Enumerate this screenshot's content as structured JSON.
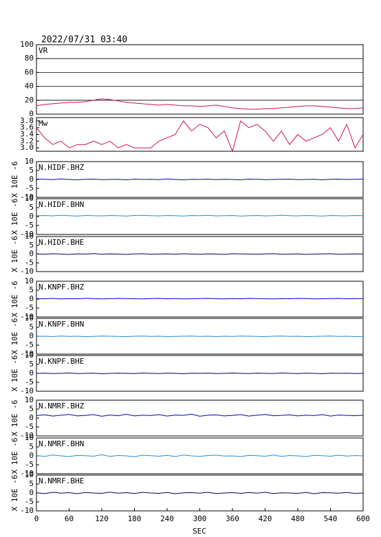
{
  "chart_data": {
    "type": "line",
    "title": "2022/07/31 03:40",
    "xlabel": "SEC",
    "xlim": [
      0,
      600
    ],
    "xticks": [
      0,
      60,
      120,
      180,
      240,
      300,
      360,
      420,
      480,
      540,
      600
    ],
    "x": [
      0,
      15,
      30,
      45,
      60,
      75,
      90,
      105,
      120,
      135,
      150,
      165,
      180,
      195,
      210,
      225,
      240,
      255,
      270,
      285,
      300,
      315,
      330,
      345,
      360,
      375,
      390,
      405,
      420,
      435,
      450,
      465,
      480,
      495,
      510,
      525,
      540,
      555,
      570,
      585,
      600
    ],
    "panels": [
      {
        "label": "VR",
        "ylim": [
          0,
          100
        ],
        "yticks": [
          0,
          20,
          40,
          60,
          80,
          100
        ],
        "grid": true,
        "series": [
          {
            "color": "#d0104c",
            "values": [
              12,
              14,
              15,
              16,
              17,
              17,
              18,
              20,
              22,
              21,
              19,
              17,
              16,
              15,
              14,
              13,
              14,
              13,
              12,
              12,
              11,
              12,
              13,
              11,
              9,
              8,
              7,
              7,
              8,
              8,
              9,
              10,
              11,
              12,
              12,
              11,
              10,
              9,
              8,
              8,
              9
            ]
          }
        ]
      },
      {
        "label": "Mw",
        "ylim": [
          2.9,
          3.9
        ],
        "yticks": [
          {
            "value": 3.0,
            "label": "3.0"
          },
          {
            "value": 3.2,
            "label": "3.2"
          },
          {
            "value": 3.4,
            "label": "3.4"
          },
          {
            "value": 3.6,
            "label": "3.6"
          },
          {
            "value": 3.8,
            "label": "3.8"
          }
        ],
        "grid": false,
        "series": [
          {
            "color": "#d0104c",
            "values": [
              3.6,
              3.3,
              3.1,
              3.2,
              3.0,
              3.1,
              3.1,
              3.2,
              3.1,
              3.2,
              3.0,
              3.1,
              3.0,
              3.0,
              3.0,
              3.2,
              3.3,
              3.4,
              3.8,
              3.5,
              3.7,
              3.6,
              3.3,
              3.5,
              2.9,
              3.8,
              3.6,
              3.7,
              3.5,
              3.2,
              3.5,
              3.1,
              3.4,
              3.2,
              3.3,
              3.4,
              3.6,
              3.2,
              3.7,
              3.0,
              3.4
            ]
          }
        ]
      },
      {
        "label": "N.HIDF.BHZ",
        "ylabel": "X 10E -6",
        "ylim": [
          -10,
          10
        ],
        "yticks": [
          -10,
          -5,
          0,
          5,
          10
        ],
        "grid": false,
        "series": [
          {
            "color": "#0000c0",
            "values": [
              0.2,
              0.1,
              -0.1,
              0.3,
              0.0,
              -0.2,
              0.1,
              0.2,
              -0.1,
              0.0,
              0.1,
              -0.2,
              0.2,
              0.0,
              0.1,
              -0.1,
              0.3,
              0.0,
              -0.2,
              0.1,
              0.0,
              0.2,
              -0.1,
              0.1,
              0.0,
              -0.2,
              0.2,
              0.1,
              -0.1,
              0.0,
              0.1,
              0.2,
              -0.1,
              0.0,
              0.1,
              -0.2,
              0.1,
              0.2,
              0.0,
              0.1,
              0.2
            ]
          }
        ]
      },
      {
        "label": "N.HIDF.BHN",
        "ylabel": "X 10E -6",
        "ylim": [
          -10,
          10
        ],
        "yticks": [
          -10,
          -5,
          0,
          5,
          10
        ],
        "grid": false,
        "series": [
          {
            "color": "#1e8ce0",
            "values": [
              0.5,
              0.6,
              0.4,
              0.7,
              0.5,
              0.3,
              0.6,
              0.5,
              0.4,
              0.6,
              0.5,
              0.3,
              0.6,
              0.7,
              0.5,
              0.4,
              0.6,
              0.5,
              0.3,
              0.6,
              0.5,
              0.7,
              0.4,
              0.5,
              0.6,
              0.3,
              0.5,
              0.6,
              0.4,
              0.5,
              0.7,
              0.5,
              0.4,
              0.6,
              0.5,
              0.3,
              0.6,
              0.5,
              0.4,
              0.6,
              0.5
            ]
          }
        ]
      },
      {
        "label": "N.HIDF.BHE",
        "ylabel": "X 10E -6",
        "ylim": [
          -10,
          10
        ],
        "yticks": [
          -10,
          -5,
          0,
          5,
          10
        ],
        "grid": false,
        "series": [
          {
            "color": "#000060",
            "values": [
              0.1,
              -0.1,
              0.2,
              0.0,
              -0.2,
              0.1,
              0.0,
              0.3,
              -0.1,
              0.1,
              0.0,
              -0.2,
              0.1,
              0.2,
              -0.1,
              0.0,
              0.1,
              -0.1,
              0.2,
              0.0,
              -0.1,
              0.1,
              0.0,
              -0.2,
              0.2,
              0.1,
              0.0,
              -0.1,
              0.1,
              0.2,
              -0.1,
              0.0,
              0.1,
              -0.2,
              0.0,
              0.1,
              0.2,
              -0.1,
              0.0,
              0.1,
              0.0
            ]
          }
        ]
      },
      {
        "label": "N.KNPF.BHZ",
        "ylabel": "X 10E -6",
        "ylim": [
          -10,
          10
        ],
        "yticks": [
          -10,
          -5,
          0,
          5,
          10
        ],
        "grid": false,
        "series": [
          {
            "color": "#0000c0",
            "values": [
              0.3,
              0.2,
              0.4,
              0.1,
              0.3,
              0.2,
              0.4,
              0.3,
              0.1,
              0.2,
              0.4,
              0.3,
              0.2,
              0.1,
              0.3,
              0.4,
              0.2,
              0.3,
              0.1,
              0.2,
              0.3,
              0.4,
              0.2,
              0.1,
              0.3,
              0.2,
              0.4,
              0.3,
              0.2,
              0.1,
              0.3,
              0.2,
              0.4,
              0.3,
              0.1,
              0.2,
              0.3,
              0.4,
              0.2,
              0.3,
              0.2
            ]
          }
        ]
      },
      {
        "label": "N.KNPF.BHN",
        "ylabel": "X 10E -6",
        "ylim": [
          -10,
          10
        ],
        "yticks": [
          -10,
          -5,
          0,
          5,
          10
        ],
        "grid": false,
        "series": [
          {
            "color": "#1e8ce0",
            "values": [
              -0.1,
              0.0,
              -0.2,
              0.1,
              -0.1,
              0.0,
              -0.2,
              -0.1,
              0.1,
              0.0,
              -0.1,
              -0.2,
              0.0,
              0.1,
              -0.1,
              0.0,
              -0.2,
              -0.1,
              0.0,
              0.1,
              -0.1,
              0.0,
              -0.2,
              0.0,
              -0.1,
              0.1,
              0.0,
              -0.1,
              -0.2,
              0.0,
              0.1,
              -0.1,
              0.0,
              -0.2,
              -0.1,
              0.0,
              0.1,
              -0.1,
              0.0,
              -0.2,
              -0.1
            ]
          }
        ]
      },
      {
        "label": "N.KNPF.BHE",
        "ylabel": "X 10E -6",
        "ylim": [
          -10,
          10
        ],
        "yticks": [
          -10,
          -5,
          0,
          5,
          10
        ],
        "grid": false,
        "series": [
          {
            "color": "#000060",
            "values": [
              0.0,
              0.1,
              -0.1,
              0.0,
              0.2,
              -0.1,
              0.0,
              0.1,
              -0.2,
              0.0,
              0.1,
              0.0,
              -0.1,
              0.2,
              0.0,
              -0.1,
              0.1,
              0.0,
              -0.2,
              0.1,
              0.0,
              0.1,
              -0.1,
              0.0,
              0.2,
              0.0,
              -0.1,
              0.1,
              0.0,
              -0.1,
              0.2,
              0.0,
              -0.1,
              0.1,
              0.0,
              -0.2,
              0.1,
              0.0,
              0.1,
              -0.1,
              0.0
            ]
          }
        ]
      },
      {
        "label": "N.NMRF.BHZ",
        "ylabel": "X 10E -6",
        "ylim": [
          -10,
          10
        ],
        "yticks": [
          -10,
          -5,
          0,
          5,
          10
        ],
        "grid": false,
        "series": [
          {
            "color": "#0000c0",
            "values": [
              1.4,
              1.8,
              1.1,
              1.6,
              2.0,
              1.2,
              1.5,
              1.9,
              1.0,
              1.7,
              1.3,
              2.1,
              1.2,
              1.6,
              1.4,
              1.9,
              1.1,
              1.7,
              1.5,
              2.2,
              1.0,
              1.6,
              1.8,
              1.2,
              1.5,
              1.9,
              1.1,
              1.6,
              2.0,
              1.3,
              1.5,
              1.8,
              1.2,
              1.6,
              1.4,
              1.9,
              1.1,
              1.7,
              1.5,
              1.3,
              1.6
            ]
          }
        ]
      },
      {
        "label": "N.NMRF.BHN",
        "ylabel": "X 10E -6",
        "ylim": [
          -10,
          10
        ],
        "yticks": [
          -10,
          -5,
          0,
          5,
          10
        ],
        "grid": false,
        "series": [
          {
            "color": "#1e8ce0",
            "values": [
              0.2,
              -0.3,
              0.5,
              0.0,
              -0.4,
              0.3,
              0.1,
              -0.2,
              0.6,
              -0.3,
              0.2,
              0.0,
              -0.5,
              0.4,
              0.1,
              -0.2,
              0.3,
              -0.4,
              0.5,
              0.0,
              -0.3,
              0.2,
              0.4,
              -0.1,
              0.0,
              -0.4,
              0.3,
              0.1,
              -0.2,
              0.5,
              -0.3,
              0.2,
              0.0,
              -0.4,
              0.3,
              0.1,
              -0.2,
              0.4,
              -0.1,
              0.2,
              0.0
            ]
          }
        ]
      },
      {
        "label": "N.NMRF.BHE",
        "ylabel": "X 10E -6",
        "ylim": [
          -10,
          10
        ],
        "yticks": [
          -10,
          -5,
          0,
          5,
          10
        ],
        "grid": false,
        "series": [
          {
            "color": "#000060",
            "values": [
              0.1,
              -0.3,
              0.4,
              -0.1,
              0.2,
              -0.4,
              0.3,
              0.0,
              -0.2,
              0.5,
              -0.1,
              0.2,
              -0.3,
              0.4,
              0.0,
              -0.2,
              0.3,
              -0.4,
              0.1,
              0.2,
              -0.1,
              0.4,
              -0.3,
              0.0,
              0.2,
              -0.2,
              0.3,
              -0.1,
              0.4,
              -0.3,
              0.1,
              0.0,
              -0.2,
              0.3,
              -0.4,
              0.2,
              0.1,
              -0.1,
              0.3,
              -0.2,
              0.0
            ]
          }
        ]
      }
    ]
  }
}
